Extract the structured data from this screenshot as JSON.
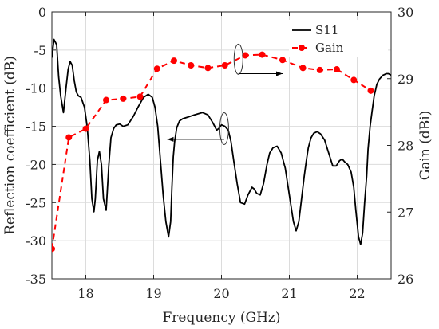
{
  "chart_data": {
    "type": "line",
    "xlabel": "Frequency (GHz)",
    "ylabel_left": "Reflection coefficient (dB)",
    "ylabel_right": "Gain (dBi)",
    "xlim": [
      17.5,
      22.5
    ],
    "ylim_left": [
      -35,
      0
    ],
    "ylim_right": [
      26,
      30
    ],
    "x_ticks": [
      18,
      19,
      20,
      21,
      22
    ],
    "x_tick_labels": [
      "18",
      "19",
      "20",
      "21",
      "22"
    ],
    "y_left_ticks": [
      0,
      -5,
      -10,
      -15,
      -20,
      -25,
      -30,
      -35
    ],
    "y_left_tick_labels": [
      "0",
      "-5",
      "-10",
      "-15",
      "-20",
      "-25",
      "-30",
      "-35"
    ],
    "y_right_ticks": [
      30,
      29,
      28,
      27,
      26
    ],
    "y_right_tick_labels": [
      "30",
      "29",
      "28",
      "27",
      "26"
    ],
    "grid": true,
    "legend_placement": "top-right",
    "series": [
      {
        "name": "S11",
        "axis": "left",
        "style": "solid",
        "color": "#000000",
        "x": [
          17.5,
          17.53,
          17.57,
          17.6,
          17.63,
          17.67,
          17.71,
          17.74,
          17.77,
          17.8,
          17.83,
          17.86,
          17.89,
          17.93,
          17.98,
          18.02,
          18.06,
          18.09,
          18.12,
          18.14,
          18.17,
          18.2,
          18.23,
          18.26,
          18.3,
          18.34,
          18.37,
          18.41,
          18.45,
          18.5,
          18.55,
          18.62,
          18.7,
          18.77,
          18.85,
          18.92,
          18.98,
          19.02,
          19.06,
          19.1,
          19.14,
          19.18,
          19.22,
          19.25,
          19.27,
          19.29,
          19.31,
          19.34,
          19.38,
          19.43,
          19.5,
          19.6,
          19.72,
          19.8,
          19.87,
          19.93,
          19.97,
          20.0,
          20.05,
          20.1,
          20.14,
          20.18,
          20.23,
          20.28,
          20.34,
          20.39,
          20.42,
          20.45,
          20.48,
          20.52,
          20.57,
          20.62,
          20.67,
          20.71,
          20.76,
          20.82,
          20.88,
          20.94,
          21.0,
          21.06,
          21.1,
          21.14,
          21.18,
          21.22,
          21.25,
          21.28,
          21.32,
          21.36,
          21.41,
          21.46,
          21.52,
          21.58,
          21.64,
          21.69,
          21.74,
          21.78,
          21.82,
          21.86,
          21.91,
          21.95,
          21.98,
          22.02,
          22.05,
          22.08,
          22.11,
          22.14,
          22.16,
          22.19,
          22.22,
          22.25,
          22.29,
          22.33,
          22.38,
          22.43,
          22.46,
          22.5
        ],
        "values": [
          -6,
          -3.6,
          -4.3,
          -8.5,
          -11,
          -13.2,
          -9.8,
          -7.5,
          -6.5,
          -7,
          -9,
          -10.5,
          -11,
          -11.2,
          -12.5,
          -15,
          -19.5,
          -24.5,
          -26.2,
          -24.5,
          -19.5,
          -18.3,
          -20,
          -24.5,
          -26,
          -20,
          -16.5,
          -15.3,
          -14.8,
          -14.7,
          -15,
          -14.8,
          -13.7,
          -12.5,
          -11.2,
          -10.8,
          -11.2,
          -12.5,
          -15,
          -19.5,
          -24,
          -27.5,
          -29.5,
          -27.5,
          -23,
          -19,
          -17,
          -15.2,
          -14.3,
          -14,
          -13.8,
          -13.5,
          -13.2,
          -13.5,
          -14.5,
          -15.5,
          -15.2,
          -14.8,
          -15,
          -15.5,
          -17,
          -19.5,
          -22.5,
          -25,
          -25.2,
          -24,
          -23.5,
          -23,
          -23.2,
          -23.8,
          -24,
          -22.5,
          -20,
          -18.5,
          -17.8,
          -17.6,
          -18.5,
          -20.5,
          -24,
          -27.5,
          -28.7,
          -27.5,
          -24.5,
          -21.5,
          -19.5,
          -17.8,
          -16.5,
          -15.9,
          -15.7,
          -16,
          -16.8,
          -18.5,
          -20.2,
          -20.2,
          -19.5,
          -19.3,
          -19.7,
          -20,
          -21,
          -23,
          -26,
          -29.5,
          -30.5,
          -29,
          -25,
          -21.5,
          -18,
          -15,
          -13,
          -11,
          -9.5,
          -8.8,
          -8.3,
          -8.1,
          -8.1,
          -8.3
        ]
      },
      {
        "name": "Gain",
        "axis": "right",
        "style": "dashed",
        "color": "#ff0000",
        "markers": true,
        "x": [
          17.5,
          17.75,
          18.0,
          18.3,
          18.55,
          18.8,
          19.05,
          19.3,
          19.55,
          19.8,
          20.05,
          20.35,
          20.6,
          20.9,
          21.2,
          21.45,
          21.7,
          21.95,
          22.2
        ],
        "values": [
          26.45,
          28.12,
          28.25,
          28.68,
          28.7,
          28.73,
          29.15,
          29.27,
          29.2,
          29.16,
          29.2,
          29.35,
          29.36,
          29.28,
          29.16,
          29.13,
          29.14,
          28.98,
          28.82
        ]
      }
    ]
  }
}
